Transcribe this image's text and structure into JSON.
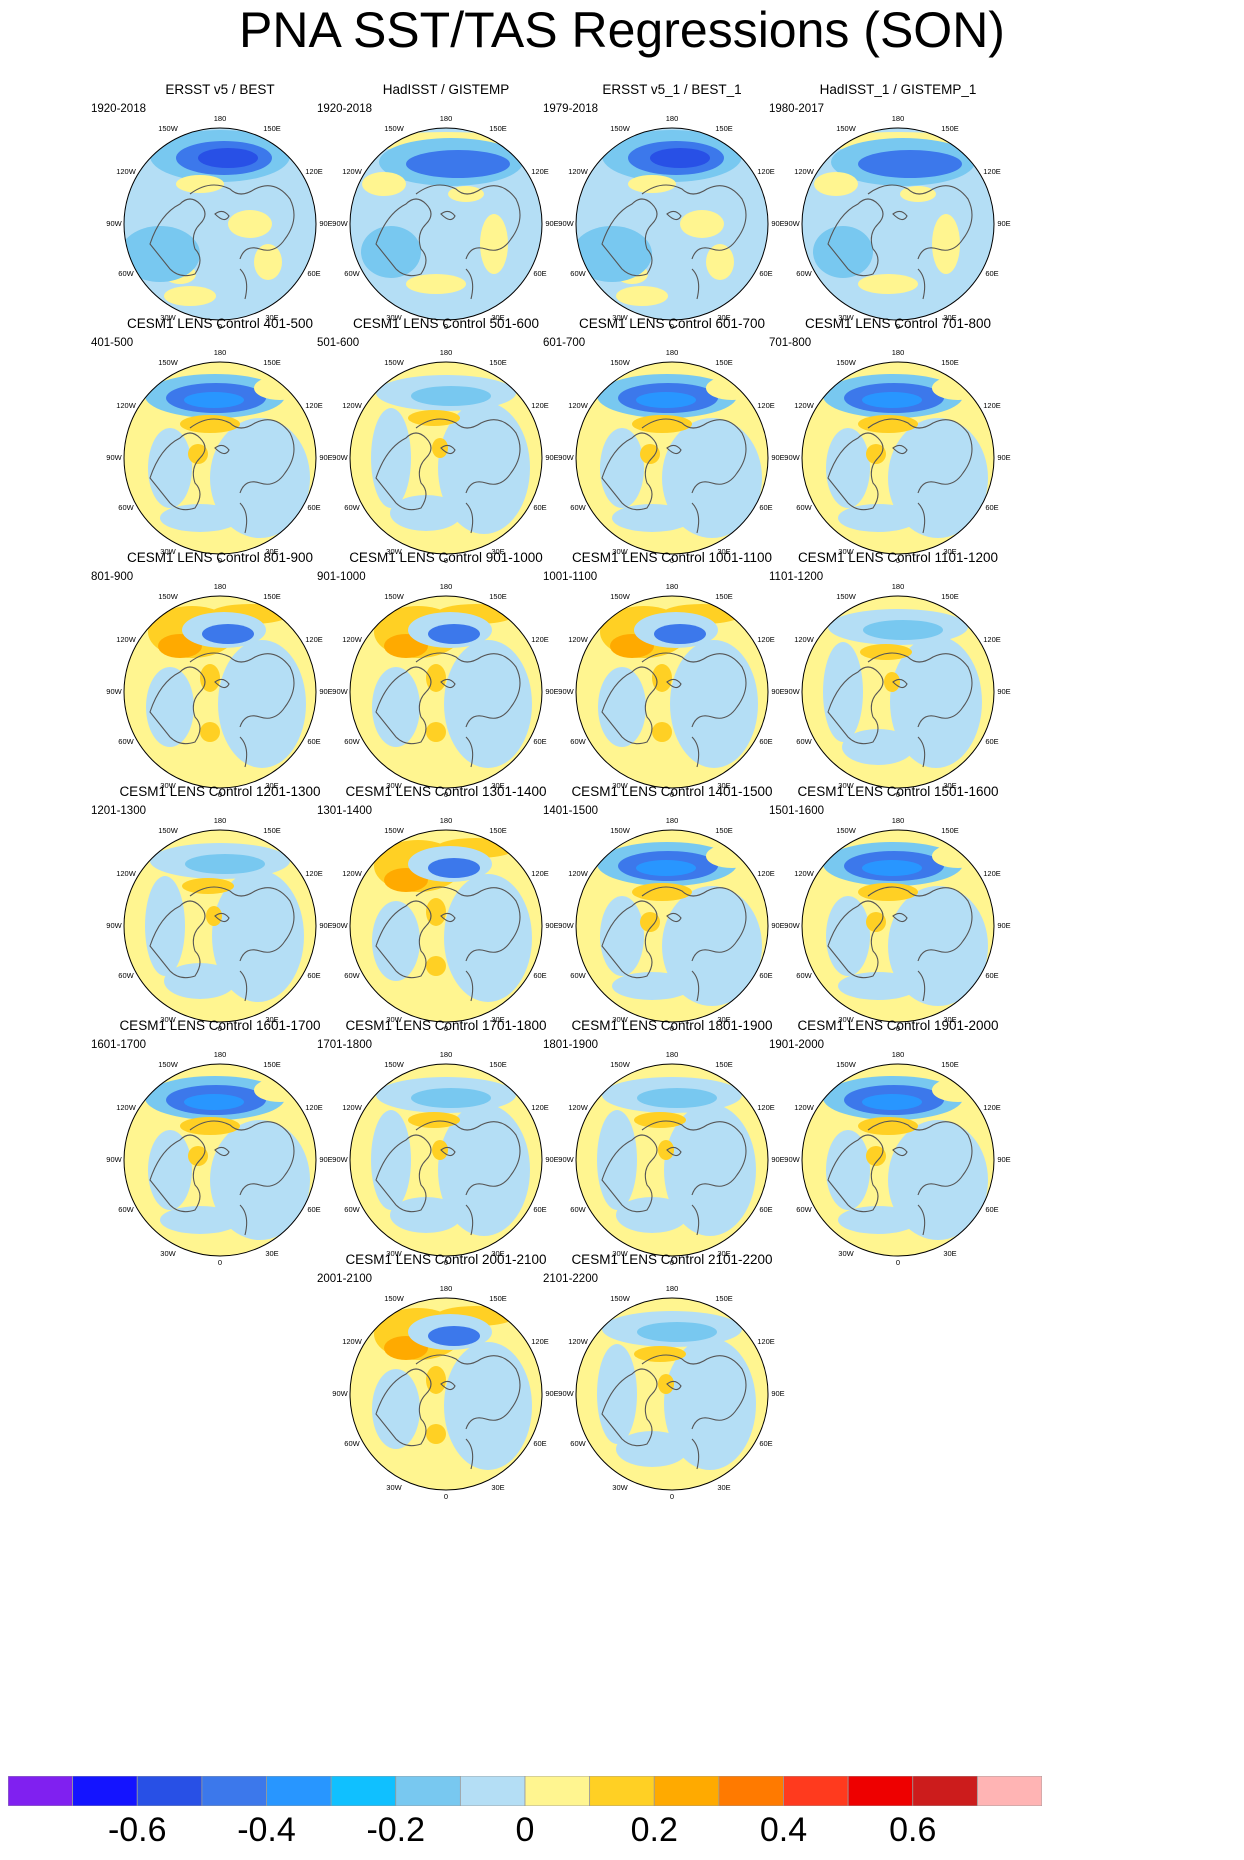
{
  "title": "PNA SST/TAS Regressions (SON)",
  "panels": [
    {
      "title": "ERSST v5 / BEST",
      "period": "1920-2018",
      "variant": 0
    },
    {
      "title": "HadISST / GISTEMP",
      "period": "1920-2018",
      "variant": 1
    },
    {
      "title": "ERSST v5_1 / BEST_1",
      "period": "1979-2018",
      "variant": 0
    },
    {
      "title": "HadISST_1 / GISTEMP_1",
      "period": "1980-2017",
      "variant": 1
    },
    {
      "title": "CESM1 LENS Control 401-500",
      "period": "401-500",
      "variant": 2
    },
    {
      "title": "CESM1 LENS Control 501-600",
      "period": "501-600",
      "variant": 3
    },
    {
      "title": "CESM1 LENS Control 601-700",
      "period": "601-700",
      "variant": 2
    },
    {
      "title": "CESM1 LENS Control 701-800",
      "period": "701-800",
      "variant": 2
    },
    {
      "title": "CESM1 LENS Control 801-900",
      "period": "801-900",
      "variant": 4
    },
    {
      "title": "CESM1 LENS Control 901-1000",
      "period": "901-1000",
      "variant": 4
    },
    {
      "title": "CESM1 LENS Control 1001-1100",
      "period": "1001-1100",
      "variant": 4
    },
    {
      "title": "CESM1 LENS Control 1101-1200",
      "period": "1101-1200",
      "variant": 3
    },
    {
      "title": "CESM1 LENS Control 1201-1300",
      "period": "1201-1300",
      "variant": 3
    },
    {
      "title": "CESM1 LENS Control 1301-1400",
      "period": "1301-1400",
      "variant": 4
    },
    {
      "title": "CESM1 LENS Control 1401-1500",
      "period": "1401-1500",
      "variant": 2
    },
    {
      "title": "CESM1 LENS Control 1501-1600",
      "period": "1501-1600",
      "variant": 2
    },
    {
      "title": "CESM1 LENS Control 1601-1700",
      "period": "1601-1700",
      "variant": 2
    },
    {
      "title": "CESM1 LENS Control 1701-1800",
      "period": "1701-1800",
      "variant": 3
    },
    {
      "title": "CESM1 LENS Control 1801-1900",
      "period": "1801-1900",
      "variant": 3
    },
    {
      "title": "CESM1 LENS Control 1901-2000",
      "period": "1901-2000",
      "variant": 2
    },
    {
      "title": "CESM1 LENS Control 2001-2100",
      "period": "2001-2100",
      "variant": 4
    },
    {
      "title": "CESM1 LENS Control 2101-2200",
      "period": "2101-2200",
      "variant": 3
    }
  ],
  "longitude_labels": {
    "top": "180",
    "top_left": "150W",
    "top_right": "150E",
    "upper_left": "120W",
    "upper_right": "120E",
    "left": "90W",
    "right": "90E",
    "lower_left": "60W",
    "lower_right": "60E",
    "bottom_left": "30W",
    "bottom_right": "30E",
    "bottom": "0"
  },
  "colorbar": {
    "colors": [
      "#8020f0",
      "#1414ff",
      "#2850e6",
      "#3c78eb",
      "#2896ff",
      "#10c0ff",
      "#78c8f0",
      "#b4def5",
      "#fff590",
      "#ffd024",
      "#ffaa00",
      "#ff7a00",
      "#ff3a1e",
      "#ee0000",
      "#cc1c1c",
      "#ffb4b4"
    ],
    "labels": [
      "-0.6",
      "-0.4",
      "-0.2",
      "0",
      "0.2",
      "0.4",
      "0.6"
    ],
    "label_boundary_index": [
      2,
      4,
      6,
      8,
      10,
      12,
      14
    ]
  }
}
